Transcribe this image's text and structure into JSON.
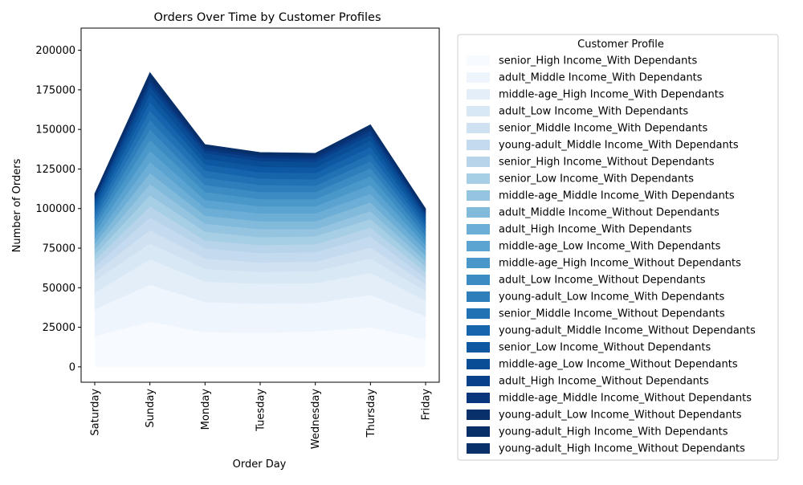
{
  "chart_data": {
    "type": "area",
    "stacked": true,
    "title": "Orders Over Time by Customer Profiles",
    "xlabel": "Order Day",
    "ylabel": "Number of Orders",
    "x": [
      "Saturday",
      "Sunday",
      "Monday",
      "Tuesday",
      "Wednesday",
      "Thursday",
      "Friday"
    ],
    "ylim": [
      -9700,
      214000
    ],
    "yticks": [
      "0",
      "25000",
      "50000",
      "75000",
      "100000",
      "125000",
      "150000",
      "175000",
      "200000"
    ],
    "ytick_values": [
      0,
      25000,
      50000,
      75000,
      100000,
      125000,
      150000,
      175000,
      200000
    ],
    "legend": {
      "title": "Customer Profile",
      "placement": "outside-right"
    },
    "grid": false,
    "colormap": "Blues",
    "series": [
      {
        "name": "senior_High Income_With Dependants",
        "color": "#f7fbff",
        "values": [
          19500,
          28500,
          22000,
          21500,
          22500,
          25000,
          17500
        ]
      },
      {
        "name": "adult_Middle Income_With Dependants",
        "color": "#eef5fc",
        "values": [
          17000,
          23500,
          19000,
          18500,
          18000,
          20500,
          14500
        ]
      },
      {
        "name": "middle-age_High Income_With Dependants",
        "color": "#e3eef9",
        "values": [
          10500,
          16000,
          13000,
          12500,
          12500,
          14000,
          10000
        ]
      },
      {
        "name": "adult_Low Income_With Dependants",
        "color": "#d9e8f5",
        "values": [
          7500,
          10000,
          8000,
          7500,
          7500,
          9000,
          6000
        ]
      },
      {
        "name": "senior_Middle Income_With Dependants",
        "color": "#d0e1f2",
        "values": [
          5000,
          8500,
          6500,
          6000,
          6000,
          7000,
          4500
        ]
      },
      {
        "name": "young-adult_Middle Income_With Dependants",
        "color": "#c4daee",
        "values": [
          4000,
          8000,
          6500,
          6000,
          6000,
          7000,
          4000
        ]
      },
      {
        "name": "senior_High Income_Without Dependants",
        "color": "#b7d4ea",
        "values": [
          4000,
          7000,
          5000,
          5000,
          5000,
          5500,
          3500
        ]
      },
      {
        "name": "senior_Low Income_With Dependants",
        "color": "#a6cee4",
        "values": [
          3500,
          7000,
          5500,
          5000,
          5000,
          5500,
          3500
        ]
      },
      {
        "name": "middle-age_Middle Income_With Dependants",
        "color": "#94c4df",
        "values": [
          3500,
          7000,
          5000,
          5000,
          4500,
          5000,
          3500
        ]
      },
      {
        "name": "adult_Middle Income_Without Dependants",
        "color": "#81badb",
        "values": [
          3500,
          7000,
          5000,
          5000,
          5000,
          5500,
          3500
        ]
      },
      {
        "name": "adult_High Income_With Dependants",
        "color": "#6caed6",
        "values": [
          3500,
          7000,
          5000,
          5000,
          5000,
          5500,
          3500
        ]
      },
      {
        "name": "middle-age_Low Income_With Dependants",
        "color": "#5ba3d0",
        "values": [
          3500,
          7000,
          5000,
          4500,
          4500,
          5500,
          3000
        ]
      },
      {
        "name": "middle-age_High Income_Without Dependants",
        "color": "#4a98c9",
        "values": [
          3500,
          7000,
          5000,
          4500,
          4500,
          5500,
          3000
        ]
      },
      {
        "name": "adult_Low Income_Without Dependants",
        "color": "#3c8bc3",
        "values": [
          3000,
          6500,
          4500,
          4500,
          4500,
          5000,
          3000
        ]
      },
      {
        "name": "young-adult_Low Income_With Dependants",
        "color": "#2e7ebc",
        "values": [
          3000,
          6000,
          4500,
          4500,
          4000,
          4500,
          3000
        ]
      },
      {
        "name": "senior_Middle Income_Without Dependants",
        "color": "#2171b5",
        "values": [
          3000,
          6000,
          4500,
          4000,
          4000,
          4500,
          2500
        ]
      },
      {
        "name": "young-adult_Middle Income_Without Dependants",
        "color": "#1664ab",
        "values": [
          3000,
          5500,
          4000,
          4000,
          4000,
          4500,
          2500
        ]
      },
      {
        "name": "senior_Low Income_Without Dependants",
        "color": "#0d58a1",
        "values": [
          2500,
          5000,
          3500,
          3500,
          3500,
          4000,
          2500
        ]
      },
      {
        "name": "middle-age_Low Income_Without Dependants",
        "color": "#084d96",
        "values": [
          2000,
          4500,
          3500,
          3500,
          3500,
          3500,
          2000
        ]
      },
      {
        "name": "adult_High Income_Without Dependants",
        "color": "#08418a",
        "values": [
          1500,
          3000,
          2000,
          2000,
          2000,
          2500,
          1500
        ]
      },
      {
        "name": "middle-age_Middle Income_Without Dependants",
        "color": "#08357b",
        "values": [
          1000,
          2500,
          1500,
          1500,
          1500,
          2000,
          1000
        ]
      },
      {
        "name": "young-adult_Low Income_Without Dependants",
        "color": "#08306b",
        "values": [
          1000,
          1500,
          1000,
          1000,
          1000,
          1000,
          1000
        ]
      },
      {
        "name": "young-adult_High Income_With Dependants",
        "color": "#082f68",
        "values": [
          500,
          1000,
          500,
          500,
          500,
          500,
          500
        ]
      },
      {
        "name": "young-adult_High Income_Without Dependants",
        "color": "#08306b",
        "values": [
          500,
          1000,
          500,
          500,
          500,
          500,
          500
        ]
      }
    ]
  }
}
